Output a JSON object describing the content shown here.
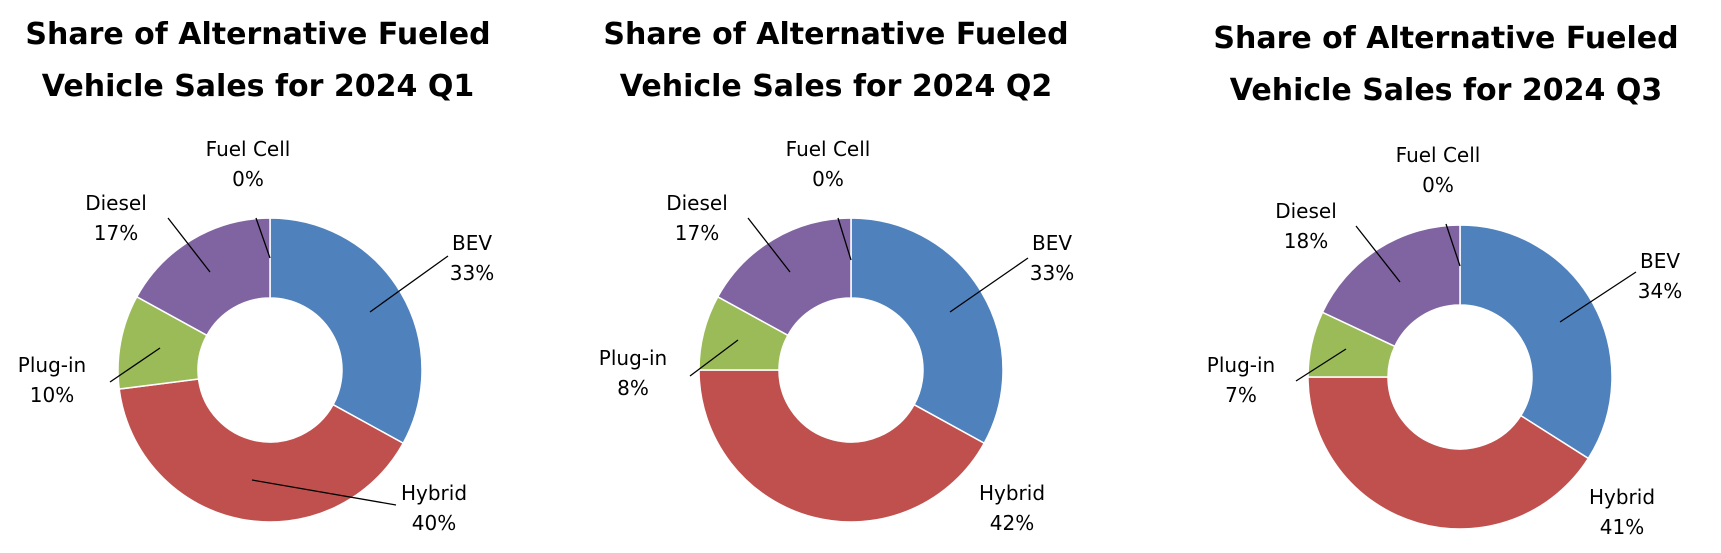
{
  "chart_data": [
    {
      "type": "pie",
      "variant": "donut",
      "title": [
        "Share of Alternative Fueled",
        "Vehicle Sales for 2024 Q1"
      ],
      "slices": [
        {
          "name": "BEV",
          "value": 33,
          "label": "33%",
          "color": "#4F81BD"
        },
        {
          "name": "Hybrid",
          "value": 40,
          "label": "40%",
          "color": "#C0504D"
        },
        {
          "name": "Plug-in",
          "value": 10,
          "label": "10%",
          "color": "#9BBB59"
        },
        {
          "name": "Diesel",
          "value": 17,
          "label": "17%",
          "color": "#8064A2"
        },
        {
          "name": "Fuel Cell",
          "value": 0,
          "label": "0%",
          "color": "#4BACC6"
        }
      ]
    },
    {
      "type": "pie",
      "variant": "donut",
      "title": [
        "Share of Alternative Fueled",
        "Vehicle Sales for 2024 Q2"
      ],
      "slices": [
        {
          "name": "BEV",
          "value": 33,
          "label": "33%",
          "color": "#4F81BD"
        },
        {
          "name": "Hybrid",
          "value": 42,
          "label": "42%",
          "color": "#C0504D"
        },
        {
          "name": "Plug-in",
          "value": 8,
          "label": "8%",
          "color": "#9BBB59"
        },
        {
          "name": "Diesel",
          "value": 17,
          "label": "17%",
          "color": "#8064A2"
        },
        {
          "name": "Fuel Cell",
          "value": 0,
          "label": "0%",
          "color": "#4BACC6"
        }
      ]
    },
    {
      "type": "pie",
      "variant": "donut",
      "title": [
        "Share of Alternative Fueled",
        "Vehicle Sales for 2024 Q3"
      ],
      "slices": [
        {
          "name": "BEV",
          "value": 34,
          "label": "34%",
          "color": "#4F81BD"
        },
        {
          "name": "Hybrid",
          "value": 41,
          "label": "41%",
          "color": "#C0504D"
        },
        {
          "name": "Plug-in",
          "value": 7,
          "label": "7%",
          "color": "#9BBB59"
        },
        {
          "name": "Diesel",
          "value": 18,
          "label": "18%",
          "color": "#8064A2"
        },
        {
          "name": "Fuel Cell",
          "value": 0,
          "label": "0%",
          "color": "#4BACC6"
        }
      ]
    }
  ]
}
